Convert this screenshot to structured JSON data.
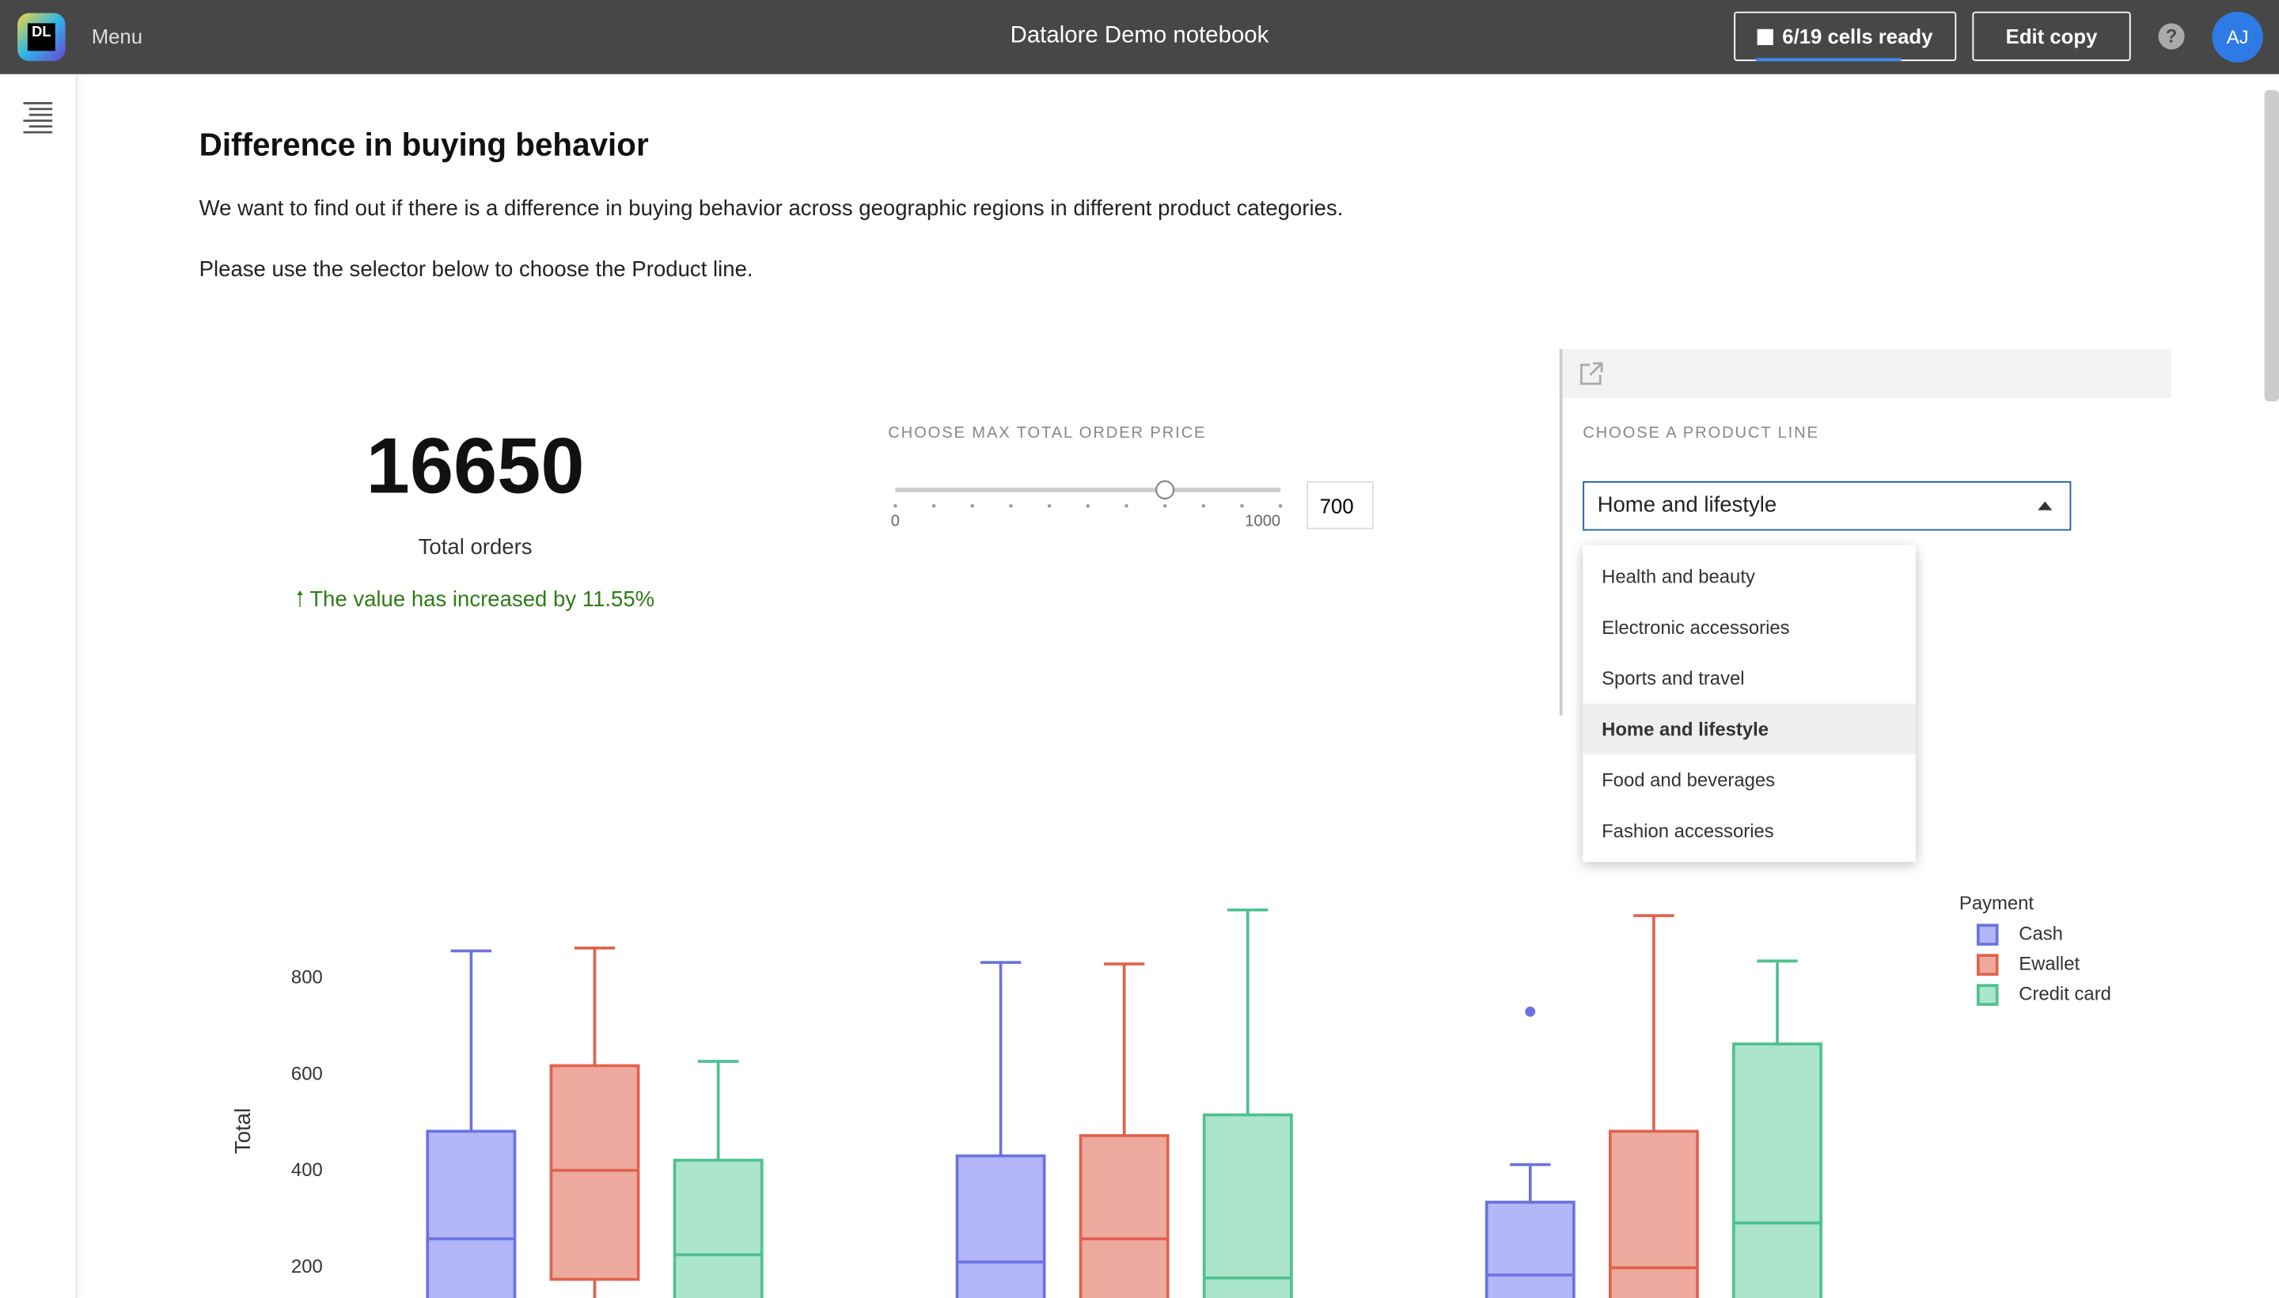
{
  "header": {
    "logo": "DL",
    "menu": "Menu",
    "title": "Datalore Demo notebook",
    "status": "6/19 cells ready",
    "edit": "Edit copy",
    "help": "?",
    "avatar": "AJ"
  },
  "notebook": {
    "heading": "Difference in buying behavior",
    "paragraph1": "We want to find out if there is a difference in buying behavior across geographic regions in different product categories.",
    "paragraph2": "Please use the selector below to choose the Product line."
  },
  "kpi": {
    "value": "16650",
    "label": "Total orders",
    "change": "The value has increased by 11.55%"
  },
  "slider": {
    "label": "CHOOSE MAX TOTAL ORDER PRICE",
    "min": 0,
    "max": 1000,
    "value": 700
  },
  "selector": {
    "label": "CHOOSE A PRODUCT LINE",
    "selected": "Home and lifestyle",
    "options": [
      "Health and beauty",
      "Electronic accessories",
      "Sports and travel",
      "Home and lifestyle",
      "Food and beverages",
      "Fashion accessories"
    ]
  },
  "chart_data": {
    "type": "box",
    "ylabel": "Total",
    "legend_title": "Payment",
    "categories": [
      null,
      null,
      null
    ],
    "ylim": [
      140,
      990
    ],
    "yticks": [
      200,
      400,
      600,
      800
    ],
    "grid": false,
    "series": [
      {
        "name": "Cash",
        "color": "#6b72e0",
        "fill": "#b3b6f7",
        "upper": [
          857,
          833,
          414
        ],
        "q3": [
          483,
          432,
          336
        ],
        "median": [
          260,
          212,
          185
        ],
        "q1": [
          null,
          null,
          null
        ],
        "outliers": [
          null,
          null,
          731
        ]
      },
      {
        "name": "Ewallet",
        "color": "#e0624e",
        "fill": "#eeaa9e",
        "upper": [
          863,
          830,
          930
        ],
        "q3": [
          619,
          474,
          483
        ],
        "median": [
          402,
          260,
          200
        ],
        "q1": [
          176,
          null,
          null
        ],
        "outliers": [
          null,
          null,
          null
        ]
      },
      {
        "name": "Credit card",
        "color": "#4fc18f",
        "fill": "#abe5cb",
        "upper": [
          628,
          942,
          836
        ],
        "q3": [
          423,
          517,
          664
        ],
        "median": [
          227,
          179,
          293
        ],
        "q1": [
          null,
          null,
          null
        ],
        "outliers": [
          null,
          null,
          null
        ]
      }
    ]
  }
}
